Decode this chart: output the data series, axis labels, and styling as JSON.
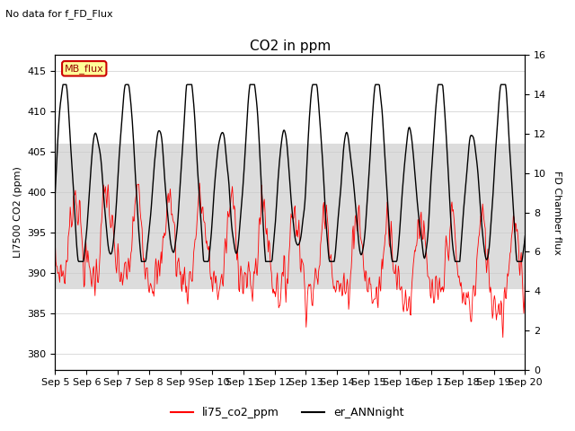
{
  "title": "CO2 in ppm",
  "subtitle": "No data for f_FD_Flux",
  "ylabel_left": "LI7500 CO2 (ppm)",
  "ylabel_right": "FD Chamber flux",
  "ylim_left": [
    378,
    417
  ],
  "ylim_right": [
    0,
    16
  ],
  "yticks_left": [
    380,
    385,
    390,
    395,
    400,
    405,
    410,
    415
  ],
  "yticks_right": [
    0,
    2,
    4,
    6,
    8,
    10,
    12,
    14,
    16
  ],
  "xlabels": [
    "Sep 5",
    "Sep 6",
    "Sep 7",
    "Sep 8",
    "Sep 9",
    "Sep 10",
    "Sep 11",
    "Sep 12",
    "Sep 13",
    "Sep 14",
    "Sep 15",
    "Sep 16",
    "Sep 17",
    "Sep 18",
    "Sep 19",
    "Sep 20"
  ],
  "legend_labels": [
    "li75_co2_ppm",
    "er_ANNnight"
  ],
  "legend_colors": [
    "red",
    "black"
  ],
  "line1_color": "red",
  "line2_color": "black",
  "mb_flux_box_color": "#FFFF99",
  "mb_flux_border_color": "#CC0000",
  "bg_band_color": "#DCDCDC",
  "bg_band_ylo": 388,
  "bg_band_yhi": 406,
  "title_fontsize": 11,
  "label_fontsize": 8,
  "tick_fontsize": 8
}
